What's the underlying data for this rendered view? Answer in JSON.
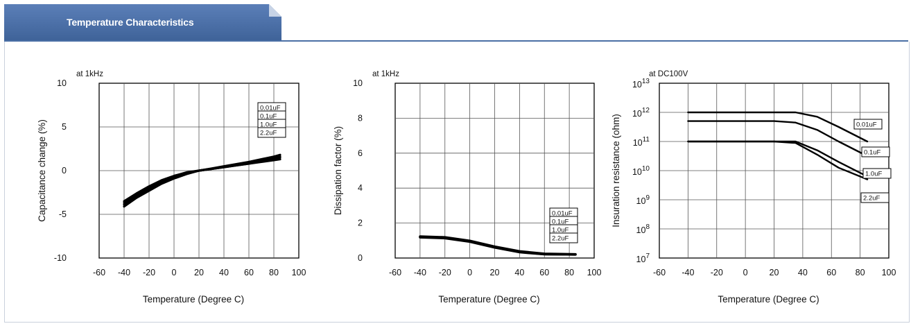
{
  "header": {
    "title": "Temperature Characteristics"
  },
  "chart_data": [
    {
      "type": "line",
      "annotation": "at 1kHz",
      "xlabel": "Temperature (Degree C)",
      "ylabel": "Capacitance change (%)",
      "x_ticks": [
        "-60",
        "-40",
        "-20",
        "0",
        "20",
        "40",
        "60",
        "80",
        "100"
      ],
      "y_ticks": [
        "10",
        "5",
        "0",
        "-5",
        "-10"
      ],
      "xlim": [
        -60,
        100
      ],
      "ylim": [
        -10,
        10
      ],
      "grid": true,
      "legend_position": "top-right",
      "legend": [
        "0.01uF",
        "0.1uF",
        "1.0uF",
        "2.2uF"
      ],
      "series": [
        {
          "name": "0.01uF",
          "x": [
            -40,
            -30,
            -20,
            -10,
            0,
            10,
            20,
            30,
            40,
            50,
            60,
            70,
            80,
            85
          ],
          "y": [
            -3.5,
            -2.6,
            -1.8,
            -1.1,
            -0.6,
            -0.2,
            0.0,
            0.2,
            0.4,
            0.6,
            0.8,
            1.1,
            1.4,
            1.6
          ]
        },
        {
          "name": "0.1uF",
          "x": [
            -40,
            -30,
            -20,
            -10,
            0,
            10,
            20,
            30,
            40,
            50,
            60,
            70,
            80,
            85
          ],
          "y": [
            -3.7,
            -2.8,
            -2.0,
            -1.3,
            -0.7,
            -0.3,
            0.0,
            0.25,
            0.5,
            0.75,
            1.0,
            1.3,
            1.6,
            1.8
          ]
        },
        {
          "name": "1.0uF",
          "x": [
            -40,
            -30,
            -20,
            -10,
            0,
            10,
            20,
            30,
            40,
            50,
            60,
            70,
            80,
            85
          ],
          "y": [
            -3.9,
            -2.9,
            -2.1,
            -1.4,
            -0.8,
            -0.3,
            0.0,
            0.2,
            0.4,
            0.6,
            0.8,
            1.0,
            1.2,
            1.3
          ]
        },
        {
          "name": "2.2uF",
          "x": [
            -40,
            -30,
            -20,
            -10,
            0,
            10,
            20,
            30,
            40,
            50,
            60,
            70,
            80,
            85
          ],
          "y": [
            -4.1,
            -3.1,
            -2.3,
            -1.5,
            -0.9,
            -0.4,
            0.0,
            0.2,
            0.45,
            0.65,
            0.9,
            1.1,
            1.3,
            1.5
          ]
        }
      ]
    },
    {
      "type": "line",
      "annotation": "at 1kHz",
      "xlabel": "Temperature (Degree C)",
      "ylabel": "Dissipation factor (%)",
      "x_ticks": [
        "-60",
        "-40",
        "-20",
        "0",
        "20",
        "40",
        "60",
        "80",
        "100"
      ],
      "y_ticks": [
        "10",
        "8",
        "6",
        "4",
        "2",
        "0"
      ],
      "xlim": [
        -60,
        100
      ],
      "ylim": [
        0,
        10
      ],
      "grid": true,
      "legend_position": "bottom-right",
      "legend": [
        "0.01uF",
        "0.1uF",
        "1.0uF",
        "2.2uF"
      ],
      "series": [
        {
          "name": "0.01uF",
          "x": [
            -40,
            -20,
            0,
            20,
            40,
            60,
            85
          ],
          "y": [
            1.2,
            1.15,
            0.95,
            0.62,
            0.35,
            0.22,
            0.2
          ]
        },
        {
          "name": "0.1uF",
          "x": [
            -40,
            -20,
            0,
            20,
            40,
            60,
            85
          ],
          "y": [
            1.22,
            1.17,
            0.97,
            0.64,
            0.37,
            0.23,
            0.21
          ]
        },
        {
          "name": "1.0uF",
          "x": [
            -40,
            -20,
            0,
            20,
            40,
            60,
            85
          ],
          "y": [
            1.18,
            1.13,
            0.93,
            0.6,
            0.33,
            0.21,
            0.2
          ]
        },
        {
          "name": "2.2uF",
          "x": [
            -40,
            -20,
            0,
            20,
            40,
            60,
            85
          ],
          "y": [
            1.24,
            1.19,
            0.99,
            0.66,
            0.39,
            0.25,
            0.22
          ]
        }
      ]
    },
    {
      "type": "line",
      "annotation": "at DC100V",
      "xlabel": "Temperature (Degree C)",
      "ylabel": "Insuration resistance (ohm)",
      "x_ticks": [
        "-60",
        "-40",
        "-20",
        "0",
        "20",
        "40",
        "60",
        "80",
        "100"
      ],
      "y_ticks_exp": [
        "13",
        "12",
        "11",
        "10",
        "9",
        "8",
        "7"
      ],
      "y_tick_base": "10",
      "xlim": [
        -60,
        100
      ],
      "ylim": [
        7,
        13
      ],
      "y_scale": "log",
      "grid": true,
      "legend_position": "right",
      "legend": [
        "0.01uF",
        "0.1uF",
        "1.0uF",
        "2.2uF"
      ],
      "series": [
        {
          "name": "0.01uF",
          "x": [
            -40,
            -20,
            0,
            20,
            35,
            50,
            65,
            85
          ],
          "y": [
            12.0,
            12.0,
            12.0,
            12.0,
            12.0,
            11.85,
            11.5,
            11.0
          ]
        },
        {
          "name": "0.1uF",
          "x": [
            -40,
            -20,
            0,
            20,
            35,
            50,
            65,
            85
          ],
          "y": [
            11.7,
            11.7,
            11.7,
            11.7,
            11.65,
            11.4,
            11.0,
            10.5
          ]
        },
        {
          "name": "1.0uF",
          "x": [
            -40,
            -20,
            0,
            20,
            35,
            50,
            65,
            85
          ],
          "y": [
            11.0,
            11.0,
            11.0,
            11.0,
            11.0,
            10.7,
            10.3,
            9.8
          ]
        },
        {
          "name": "2.2uF",
          "x": [
            -40,
            -20,
            0,
            20,
            35,
            50,
            65,
            85
          ],
          "y": [
            11.0,
            11.0,
            11.0,
            11.0,
            10.95,
            10.55,
            10.1,
            9.7
          ]
        }
      ]
    }
  ]
}
